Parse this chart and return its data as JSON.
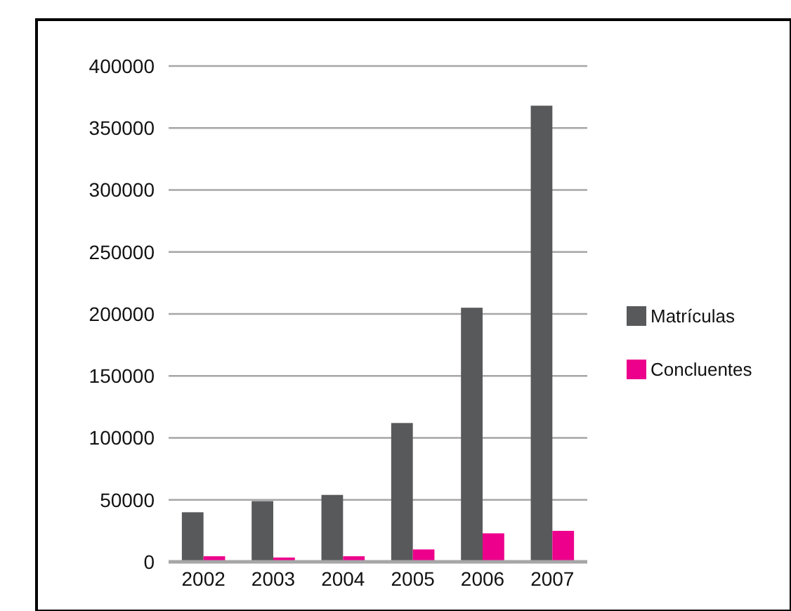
{
  "chart_data": {
    "type": "bar",
    "categories": [
      "2002",
      "2003",
      "2004",
      "2005",
      "2006",
      "2007"
    ],
    "series": [
      {
        "name": "Matrículas",
        "color": "#58595b",
        "values": [
          40000,
          49000,
          54000,
          112000,
          205000,
          368000
        ]
      },
      {
        "name": "Concluentes",
        "color": "#ec008c",
        "values": [
          4500,
          3500,
          4500,
          10000,
          23000,
          25000
        ]
      }
    ],
    "ylim": [
      0,
      400000
    ],
    "yticks": [
      0,
      50000,
      100000,
      150000,
      200000,
      250000,
      300000,
      350000,
      400000
    ],
    "grid": "y",
    "legend": "right"
  }
}
